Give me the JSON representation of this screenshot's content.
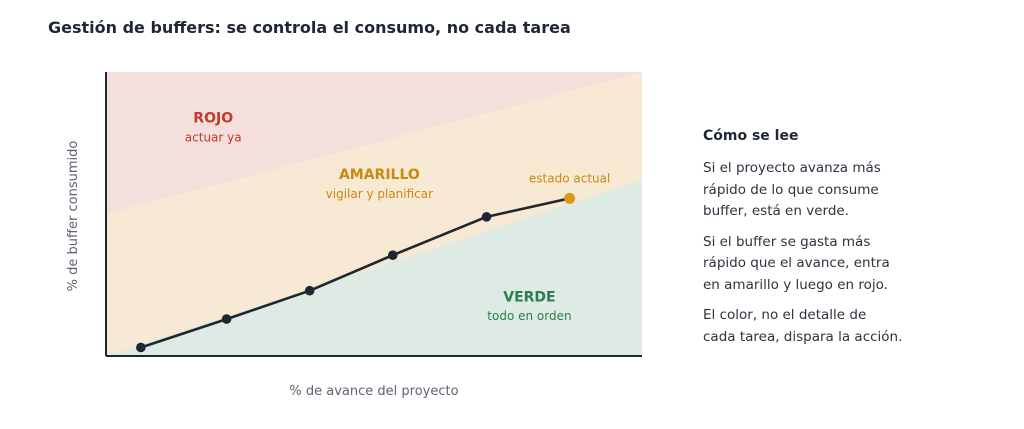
{
  "title": "Gestión de buffers: se controla el consumo, no cada tarea",
  "colors": {
    "red_zone": "#f5dfdc",
    "yellow_zone": "#f7e9d4",
    "green_zone": "#deebe4",
    "red_text": "#c0392b",
    "yellow_text": "#c8890e",
    "green_text": "#2e7d4f",
    "line": "#1f2733",
    "current_point": "#d89a18",
    "axis": "#1f2733",
    "axis_label": "#5b6472"
  },
  "chart_data": {
    "type": "line",
    "xlabel": "% de avance del proyecto",
    "ylabel": "% de buffer consumido",
    "xlim": [
      0,
      100
    ],
    "ylim": [
      0,
      100
    ],
    "series": [
      {
        "x": [
          6.5,
          22.5,
          38,
          53.5,
          71,
          86.5
        ],
        "y": [
          3,
          13,
          23,
          35.5,
          49,
          55.5
        ]
      }
    ],
    "zones": [
      {
        "key": "red",
        "label": "ROJO",
        "sublabel": "actuar ya",
        "color": "#f5dfdc"
      },
      {
        "key": "yellow",
        "label": "AMARILLO",
        "sublabel": "vigilar y planificar",
        "color": "#f7e9d4"
      },
      {
        "key": "green",
        "label": "VERDE",
        "sublabel": "todo en orden",
        "color": "#deebe4"
      }
    ],
    "zone_boundaries": {
      "yellow_green": [
        [
          0,
          0
        ],
        [
          100,
          62
        ]
      ],
      "red_yellow": [
        [
          0,
          50
        ],
        [
          100,
          100
        ]
      ]
    },
    "annotations": [
      {
        "text": "estado actual",
        "x": 86.5,
        "y": 55.5
      }
    ],
    "grid": false
  },
  "legend": {
    "heading": "Cómo se lee",
    "paragraphs": [
      [
        "Si el proyecto avanza más",
        "rápido de lo que consume",
        "buffer, está en verde."
      ],
      [
        "Si el buffer se gasta más",
        "rápido que el avance, entra",
        "en amarillo y luego en rojo."
      ],
      [
        "El color, no el detalle de",
        "cada tarea, dispara la acción."
      ]
    ]
  }
}
